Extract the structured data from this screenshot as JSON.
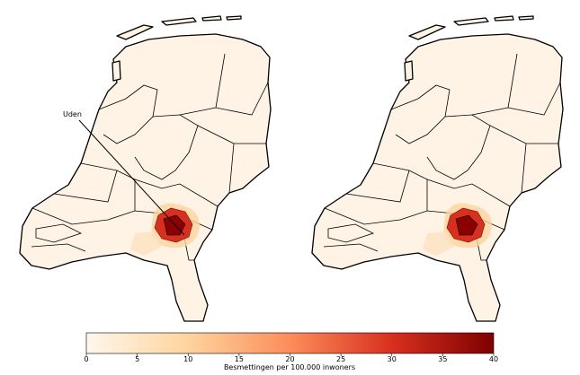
{
  "annotation": "Uden",
  "colorbar": {
    "label": "Besmettingen per 100.000 inwoners",
    "lim": [
      0,
      40
    ],
    "ticks": [
      0,
      5,
      10,
      15,
      20,
      25,
      30,
      35,
      40
    ]
  }
}
